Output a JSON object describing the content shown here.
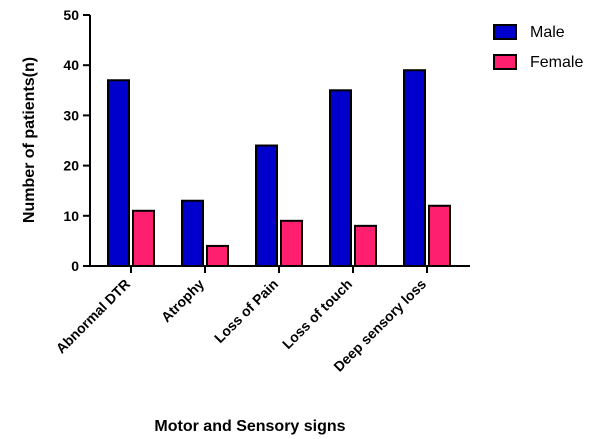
{
  "chart_data": {
    "type": "bar",
    "categories": [
      "Abnormal DTR",
      "Atrophy",
      "Loss of Pain",
      "Loss of touch",
      "Deep sensory loss"
    ],
    "series": [
      {
        "name": "Male",
        "values": [
          37,
          13,
          24,
          35,
          39
        ],
        "color": "#0000cc"
      },
      {
        "name": "Female",
        "values": [
          11,
          4,
          9,
          8,
          12
        ],
        "color": "#ff1f6e"
      }
    ],
    "xlabel": "Motor and Sensory signs",
    "ylabel": "Number of patients(n)",
    "ylim": [
      0,
      50
    ],
    "yticks": [
      0,
      10,
      20,
      30,
      40,
      50
    ],
    "legend_position": "top-right",
    "grid": false
  }
}
